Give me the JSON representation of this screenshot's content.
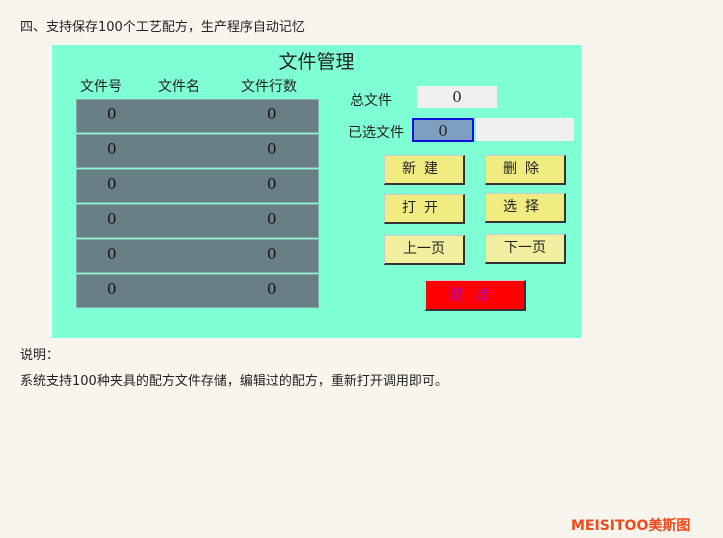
{
  "heading": "四、支持保存100个工艺配方，生产程序自动记忆",
  "panel": {
    "title": "文件管理",
    "columns": [
      "文件号",
      "文件名",
      "文件行数"
    ],
    "rows": [
      {
        "no": "0",
        "name": "",
        "lines": "0"
      },
      {
        "no": "0",
        "name": "",
        "lines": "0"
      },
      {
        "no": "0",
        "name": "",
        "lines": "0"
      },
      {
        "no": "0",
        "name": "",
        "lines": "0"
      },
      {
        "no": "0",
        "name": "",
        "lines": "0"
      },
      {
        "no": "0",
        "name": "",
        "lines": "0"
      }
    ],
    "total_label": "总文件",
    "total_value": "0",
    "selected_label": "已选文件",
    "selected_value": "0",
    "selected_name": "",
    "buttons": {
      "new": "新建",
      "delete": "删除",
      "open": "打开",
      "select": "选择",
      "prev": "上一页",
      "next": "下一页",
      "exit": "退出"
    }
  },
  "note_label": "说明：",
  "note_text": "系统支持100种夹具的配方文件存储，编辑过的配方，重新打开调用即可。",
  "watermark": "MEISITOO美斯图",
  "colors": {
    "panel": "#7fffd4",
    "row": "#687f85",
    "button": "#f0ec82",
    "exit": "#ff0000",
    "watermark": "#f04a1c"
  }
}
